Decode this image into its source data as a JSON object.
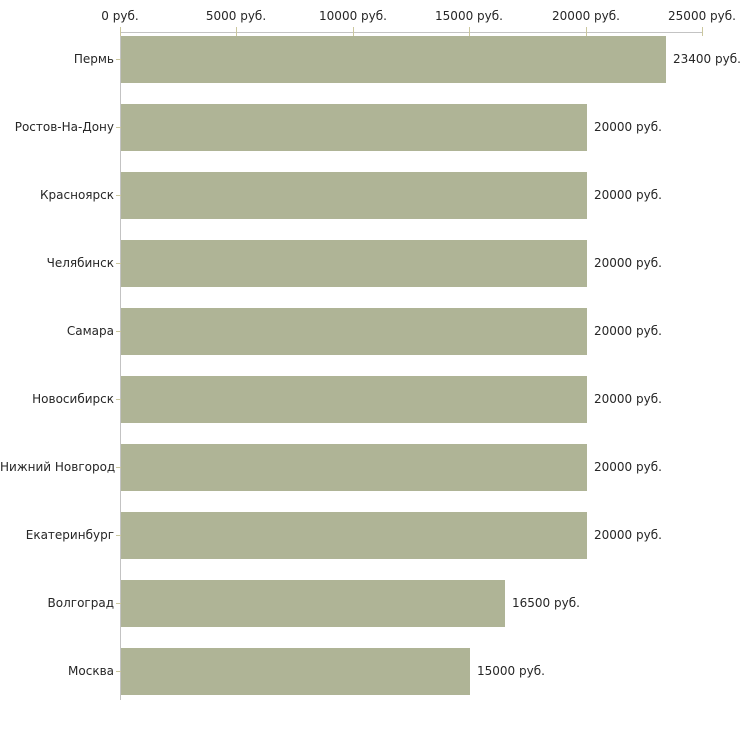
{
  "chart_data": {
    "type": "bar",
    "orientation": "horizontal",
    "title": "",
    "xlabel": "",
    "ylabel": "",
    "unit": "руб.",
    "xlim": [
      0,
      25000
    ],
    "grid": false,
    "legend": false,
    "categories": [
      "Пермь",
      "Ростов-На-Дону",
      "Красноярск",
      "Челябинск",
      "Самара",
      "Новосибирск",
      "Нижний Новгород",
      "Екатеринбург",
      "Волгоград",
      "Москва"
    ],
    "values": [
      23400,
      20000,
      20000,
      20000,
      20000,
      20000,
      20000,
      20000,
      16500,
      15000
    ],
    "value_labels": [
      "23400 руб.",
      "20000 руб.",
      "20000 руб.",
      "20000 руб.",
      "20000 руб.",
      "20000 руб.",
      "20000 руб.",
      "20000 руб.",
      "16500 руб.",
      "15000 руб."
    ],
    "x_tick_values": [
      0,
      5000,
      10000,
      15000,
      20000,
      25000
    ],
    "x_tick_labels": [
      "0 руб.",
      "5000 руб.",
      "10000 руб.",
      "15000 руб.",
      "20000 руб.",
      "25000 руб."
    ],
    "colors": {
      "bar_fill": "#afb496",
      "axis_line": "#c3c3c3",
      "tick_mark": "#cbc79e",
      "text": "#262626",
      "background": "#ffffff"
    }
  }
}
